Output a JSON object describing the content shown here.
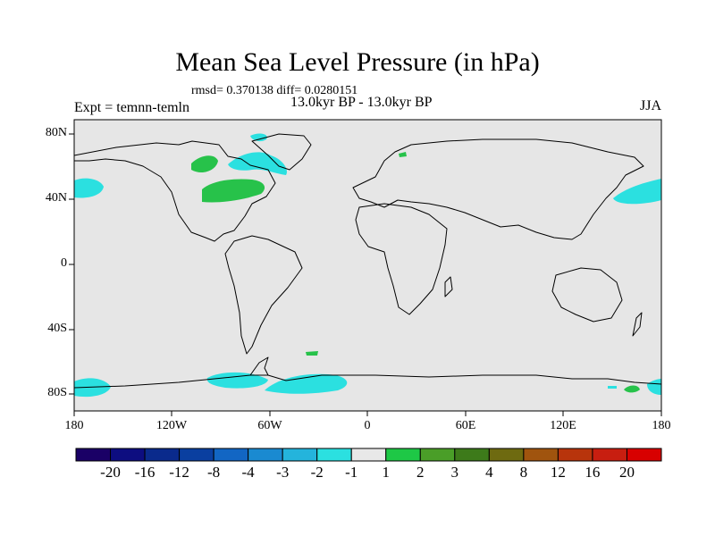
{
  "title": "Mean Sea Level Pressure (in hPa)",
  "stats": "rmsd= 0.370138 diff= 0.0280151",
  "experiment": "Expt = temnn-temln",
  "period": "13.0kyr BP - 13.0kyr BP",
  "season": "JJA",
  "lat_labels": [
    "80N",
    "40N",
    "0",
    "40S",
    "80S"
  ],
  "lon_labels": [
    "180",
    "120W",
    "60W",
    "0",
    "60E",
    "120E",
    "180"
  ],
  "colorbar": {
    "labels": [
      "-20",
      "-16",
      "-12",
      "-8",
      "-4",
      "-3",
      "-2",
      "-1",
      "1",
      "2",
      "3",
      "4",
      "8",
      "12",
      "16",
      "20"
    ],
    "colors": [
      "#1a0066",
      "#0d0d80",
      "#0a2a8c",
      "#0a3fa0",
      "#1266c4",
      "#1a8ad1",
      "#24b4dc",
      "#2be0e0",
      "#e8e8e8",
      "#1ec846",
      "#4a9e28",
      "#3d7a1a",
      "#6e6a10",
      "#a0540e",
      "#b8340c",
      "#c81e10",
      "#d80000"
    ]
  },
  "colors": {
    "ocean_land_background": "#e6e6e6",
    "negative_anomaly": "#2be0e0",
    "positive_anomaly": "#27c24a"
  }
}
